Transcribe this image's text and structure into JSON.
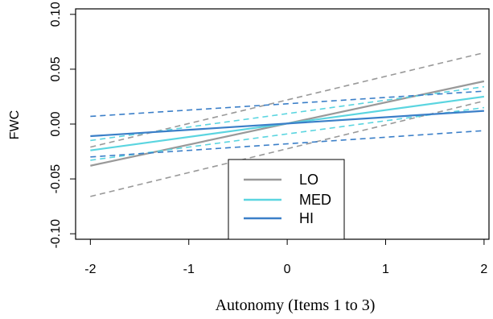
{
  "chart_data": {
    "type": "line",
    "title": "",
    "xlabel": "Autonomy (Items 1 to 3)",
    "ylabel": "FWC",
    "xlim": [
      -2.15,
      2.05
    ],
    "ylim": [
      -0.105,
      0.105
    ],
    "xticks": [
      -2,
      -1,
      0,
      1,
      2
    ],
    "xtick_labels": [
      "-2",
      "-1",
      "0",
      "1",
      "2"
    ],
    "yticks": [
      -0.1,
      -0.05,
      0.0,
      0.05,
      0.1
    ],
    "ytick_labels": [
      "-0.10",
      "-0.05",
      "0.00",
      "0.05",
      "0.10"
    ],
    "grid": false,
    "legend": {
      "position": "bottom-center",
      "entries": [
        "LO",
        "MED",
        "HI"
      ]
    },
    "series": [
      {
        "name": "LO",
        "color": "#999999",
        "x": [
          -2,
          2
        ],
        "y": [
          -0.038,
          0.039
        ],
        "ci_lower": [
          -0.066,
          0.021
        ],
        "ci_upper": [
          -0.021,
          0.065
        ]
      },
      {
        "name": "MED",
        "color": "#5bd5e0",
        "x": [
          -2,
          2
        ],
        "y": [
          -0.024,
          0.025
        ],
        "ci_lower": [
          -0.033,
          0.015
        ],
        "ci_upper": [
          -0.015,
          0.034
        ]
      },
      {
        "name": "HI",
        "color": "#3b7fc8",
        "x": [
          -2,
          2
        ],
        "y": [
          -0.011,
          0.012
        ],
        "ci_lower": [
          -0.03,
          -0.006
        ],
        "ci_upper": [
          0.007,
          0.03
        ]
      }
    ]
  }
}
